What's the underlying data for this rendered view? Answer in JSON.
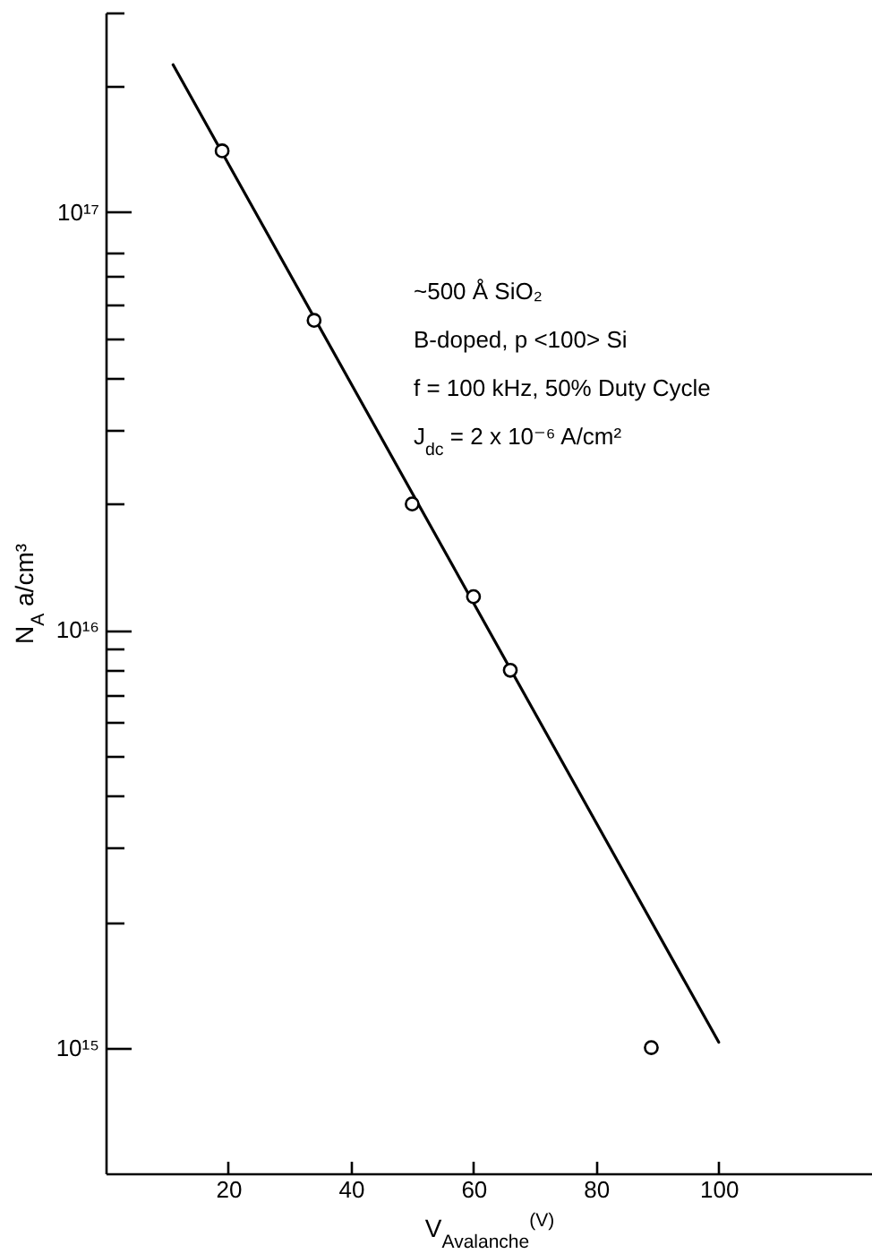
{
  "chart_data": {
    "type": "scatter",
    "xlabel": "V$_{Avalanche}$$^{(V)}$",
    "ylabel": "N$_{A}$ a/cm³",
    "annotations": [
      "~500 Å SiO₂",
      "B-doped, p <100> Si",
      "f = 100 kHz, 50% Duty Cycle",
      "J$_{dc}$ = 2 x 10⁻⁶ A/cm²"
    ],
    "series": [
      {
        "type": "line",
        "color": "#000000",
        "x": [
          11,
          100
        ],
        "values": [
          2.25e+17,
          1030000000000000.0
        ]
      },
      {
        "color": "#000000",
        "marker": "circle",
        "x": [
          19,
          34,
          50,
          60,
          66,
          89
        ],
        "values": [
          1.4e+17,
          5.5e+16,
          2e+16,
          1.2e+16,
          8000000000000000.0,
          1000000000000000.0
        ]
      }
    ],
    "xlim": [
      0,
      125
    ],
    "ylim": [
      500000000000000.0,
      3e+17
    ],
    "xticks": [
      20,
      40,
      60,
      80,
      100
    ],
    "yticks": [
      {
        "value": 1000000000000000.0,
        "label": "10¹⁵"
      },
      {
        "value": 2000000000000000.0,
        "label": null
      },
      {
        "value": 3000000000000000.0,
        "label": null
      },
      {
        "value": 4000000000000000.0,
        "label": null
      },
      {
        "value": 5000000000000000.0,
        "label": null
      },
      {
        "value": 6000000000000000.0,
        "label": null
      },
      {
        "value": 7000000000000000.0,
        "label": null
      },
      {
        "value": 8000000000000000.0,
        "label": null
      },
      {
        "value": 9000000000000000.0,
        "label": null
      },
      {
        "value": 1e+16,
        "label": "10¹⁶"
      },
      {
        "value": 2e+16,
        "label": null
      },
      {
        "value": 3e+16,
        "label": null
      },
      {
        "value": 4e+16,
        "label": null
      },
      {
        "value": 5e+16,
        "label": null
      },
      {
        "value": 6e+16,
        "label": null
      },
      {
        "value": 7e+16,
        "label": null
      },
      {
        "value": 8e+16,
        "label": null
      },
      {
        "value": 1e+17,
        "label": "10¹⁷"
      },
      {
        "value": 2e+17,
        "label": null
      },
      {
        "value": 3e+17,
        "label": null
      }
    ],
    "log": "y"
  }
}
